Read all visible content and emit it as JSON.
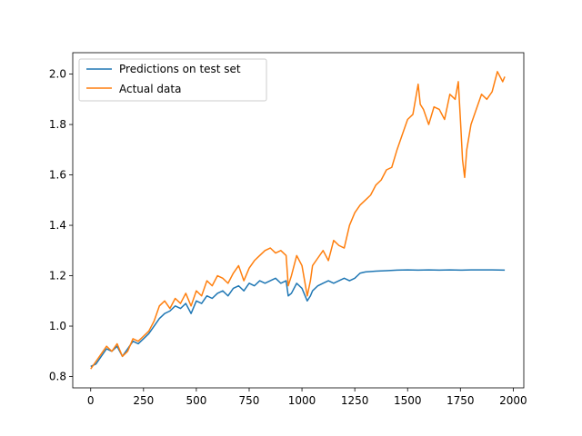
{
  "chart_data": {
    "type": "line",
    "title": "",
    "xlabel": "",
    "ylabel": "",
    "xlim": [
      -85,
      2050
    ],
    "ylim": [
      0.755,
      2.085
    ],
    "x_ticks": [
      0,
      250,
      500,
      750,
      1000,
      1250,
      1500,
      1750,
      2000
    ],
    "y_ticks": [
      0.8,
      1.0,
      1.2,
      1.4,
      1.6,
      1.8,
      2.0
    ],
    "x_tick_labels": [
      "0",
      "250",
      "500",
      "750",
      "1000",
      "1250",
      "1500",
      "1750",
      "2000"
    ],
    "y_tick_labels": [
      "0.8",
      "1.0",
      "1.2",
      "1.4",
      "1.6",
      "1.8",
      "2.0"
    ],
    "grid": false,
    "legend_position": "top-left",
    "series": [
      {
        "name": "Predictions on test set",
        "color": "#1f77b4",
        "x": [
          0,
          25,
          50,
          75,
          100,
          125,
          150,
          175,
          200,
          225,
          250,
          275,
          300,
          325,
          350,
          375,
          400,
          425,
          450,
          475,
          500,
          525,
          550,
          575,
          600,
          625,
          650,
          675,
          700,
          725,
          750,
          775,
          800,
          825,
          850,
          875,
          900,
          925,
          935,
          950,
          975,
          1000,
          1025,
          1040,
          1050,
          1075,
          1100,
          1125,
          1150,
          1175,
          1200,
          1225,
          1250,
          1275,
          1300,
          1350,
          1400,
          1450,
          1500,
          1550,
          1600,
          1650,
          1700,
          1750,
          1800,
          1850,
          1900,
          1960
        ],
        "values": [
          0.84,
          0.85,
          0.88,
          0.91,
          0.9,
          0.92,
          0.88,
          0.91,
          0.94,
          0.93,
          0.95,
          0.97,
          1.0,
          1.03,
          1.05,
          1.06,
          1.08,
          1.07,
          1.09,
          1.05,
          1.1,
          1.09,
          1.12,
          1.11,
          1.13,
          1.14,
          1.12,
          1.15,
          1.16,
          1.14,
          1.17,
          1.16,
          1.18,
          1.17,
          1.18,
          1.19,
          1.17,
          1.18,
          1.12,
          1.13,
          1.17,
          1.15,
          1.1,
          1.12,
          1.14,
          1.16,
          1.17,
          1.18,
          1.17,
          1.18,
          1.19,
          1.18,
          1.19,
          1.21,
          1.215,
          1.218,
          1.22,
          1.222,
          1.223,
          1.222,
          1.223,
          1.222,
          1.223,
          1.222,
          1.223,
          1.223,
          1.223,
          1.222
        ]
      },
      {
        "name": "Actual data",
        "color": "#ff7f0e",
        "x": [
          0,
          25,
          50,
          75,
          100,
          125,
          150,
          175,
          200,
          225,
          250,
          275,
          300,
          325,
          350,
          375,
          400,
          425,
          450,
          475,
          500,
          525,
          550,
          575,
          600,
          625,
          650,
          675,
          700,
          725,
          750,
          775,
          800,
          825,
          850,
          875,
          900,
          925,
          935,
          950,
          975,
          1000,
          1025,
          1040,
          1050,
          1075,
          1100,
          1125,
          1150,
          1175,
          1200,
          1225,
          1250,
          1275,
          1300,
          1325,
          1350,
          1375,
          1400,
          1425,
          1450,
          1475,
          1500,
          1525,
          1550,
          1560,
          1575,
          1600,
          1625,
          1650,
          1675,
          1700,
          1725,
          1740,
          1750,
          1760,
          1770,
          1780,
          1800,
          1825,
          1850,
          1875,
          1900,
          1925,
          1950,
          1960
        ],
        "values": [
          0.83,
          0.86,
          0.89,
          0.92,
          0.9,
          0.93,
          0.88,
          0.9,
          0.95,
          0.94,
          0.96,
          0.98,
          1.02,
          1.08,
          1.1,
          1.07,
          1.11,
          1.09,
          1.13,
          1.08,
          1.14,
          1.12,
          1.18,
          1.16,
          1.2,
          1.19,
          1.17,
          1.21,
          1.24,
          1.18,
          1.23,
          1.26,
          1.28,
          1.3,
          1.31,
          1.29,
          1.3,
          1.28,
          1.16,
          1.2,
          1.28,
          1.24,
          1.12,
          1.18,
          1.24,
          1.27,
          1.3,
          1.26,
          1.34,
          1.32,
          1.31,
          1.4,
          1.45,
          1.48,
          1.5,
          1.52,
          1.56,
          1.58,
          1.62,
          1.63,
          1.7,
          1.76,
          1.82,
          1.84,
          1.96,
          1.88,
          1.86,
          1.8,
          1.87,
          1.86,
          1.82,
          1.92,
          1.9,
          1.97,
          1.82,
          1.66,
          1.59,
          1.7,
          1.8,
          1.86,
          1.92,
          1.9,
          1.93,
          2.01,
          1.97,
          1.99
        ]
      }
    ]
  }
}
